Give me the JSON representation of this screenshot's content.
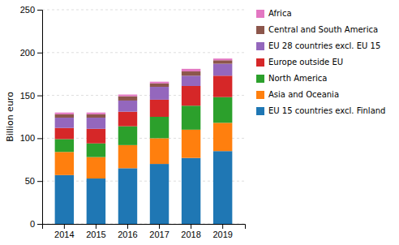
{
  "chart_data": {
    "type": "bar",
    "stacked": true,
    "ylabel": "Billion euro",
    "categories": [
      "2014",
      "2015",
      "2016",
      "2017",
      "2018",
      "2019"
    ],
    "series": [
      {
        "name": "EU 15 countries excl. Finland",
        "values": [
          57,
          53,
          65,
          70,
          77,
          85
        ]
      },
      {
        "name": "Asia and Oceania",
        "values": [
          27,
          25,
          27,
          30,
          33,
          33
        ]
      },
      {
        "name": "North America",
        "values": [
          15,
          16,
          22,
          25,
          28,
          30
        ]
      },
      {
        "name": "Europe outside EU",
        "values": [
          13,
          17,
          17,
          20,
          23,
          25
        ]
      },
      {
        "name": "EU 28 countries excl. EU 15",
        "values": [
          12,
          13,
          13,
          15,
          12,
          14
        ]
      },
      {
        "name": "Central and South America",
        "values": [
          4,
          4,
          5,
          4,
          5,
          4
        ]
      },
      {
        "name": "Africa",
        "values": [
          2,
          2,
          2,
          2,
          3,
          2
        ]
      }
    ],
    "ylim": [
      0,
      250
    ],
    "yticks": [
      0,
      50,
      100,
      150,
      200,
      250
    ],
    "grid": true,
    "legend": "right"
  }
}
